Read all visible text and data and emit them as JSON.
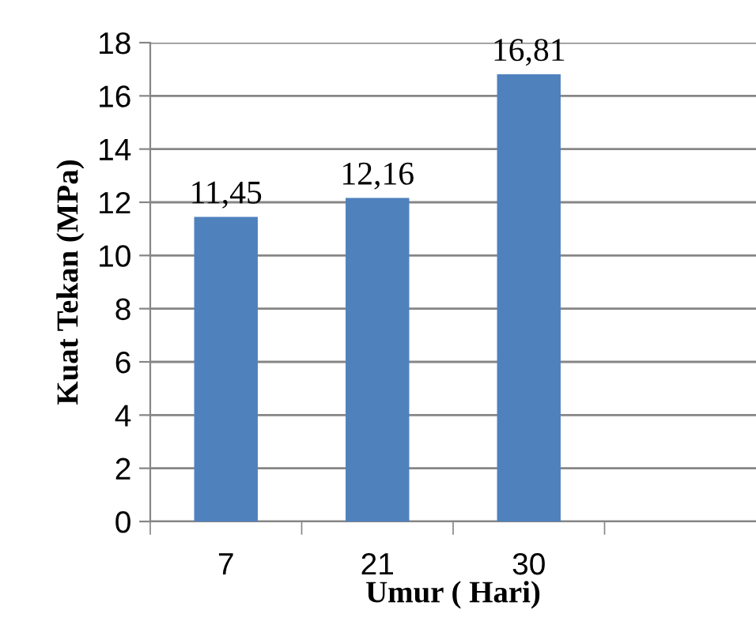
{
  "chart_data": {
    "type": "bar",
    "xlabel": "Umur ( Hari)",
    "ylabel": "Kuat Tekan (MPa)",
    "categories": [
      "7",
      "21",
      "30",
      null
    ],
    "values": [
      11.45,
      12.16,
      16.81,
      null
    ],
    "value_labels": [
      "11,45",
      "12,16",
      "16,81",
      null
    ],
    "color": "#4f81bd",
    "ylim": [
      0,
      18
    ],
    "yticks": [
      0,
      2,
      4,
      6,
      8,
      10,
      12,
      14,
      16,
      18
    ],
    "grid": "y",
    "legend": false
  }
}
